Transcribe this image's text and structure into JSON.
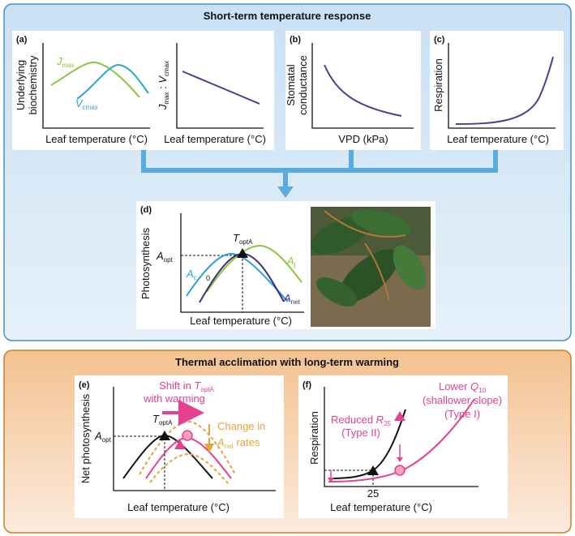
{
  "top": {
    "title": "Short-term temperature response",
    "panel_a": {
      "label": "(a)",
      "y_label_1": "Underlying",
      "y_label_2": "biochemistry",
      "x_label": "Leaf temperature (°C)",
      "jmax": [
        "J",
        "max"
      ],
      "vcmax": [
        "V",
        "cmax"
      ],
      "ratio_y_label": [
        "J",
        "max",
        " : ",
        "V",
        "cmax"
      ],
      "x_label_2": "Leaf temperature (°C)"
    },
    "panel_b": {
      "label": "(b)",
      "y_label_1": "Stomatal",
      "y_label_2": "conductance",
      "x_label": "VPD (kPa)"
    },
    "panel_c": {
      "label": "(c)",
      "y_label": "Respiration",
      "x_label": "Leaf temperature (°C)"
    },
    "panel_d": {
      "label": "(d)",
      "y_label": "Photosynthesis",
      "x_label": "Leaf temperature (°C)",
      "a_opt": [
        "A",
        "opt"
      ],
      "t_opta": [
        "T",
        "optA"
      ],
      "a_c": [
        "A",
        "c"
      ],
      "zero": "0",
      "a_j": [
        "A",
        "j"
      ],
      "a_net": [
        "A",
        "net"
      ]
    }
  },
  "bottom": {
    "title": "Thermal acclimation with long-term warming",
    "panel_e": {
      "label": "(e)",
      "y_label": "Net photosynthesis",
      "x_label": "Leaf temperature (°C)",
      "a_opt": [
        "A",
        "opt"
      ],
      "t_opta": [
        "T",
        "optA"
      ],
      "shift": [
        "Shift in ",
        "T",
        "optA"
      ],
      "shift_2": "with warming",
      "change_1": "Change in",
      "change_2": [
        "A",
        "net",
        " rates"
      ]
    },
    "panel_f": {
      "label": "(f)",
      "y_label": "Respiration",
      "x_label": "Leaf temperature (°C)",
      "tick": "25",
      "reduced": [
        "Reduced ",
        "R",
        "25"
      ],
      "type_ii": "(Type II)",
      "lower": [
        "Lower ",
        "Q",
        "10"
      ],
      "shallower": "(shallower slope)",
      "type_i": "(Type I)"
    }
  }
}
